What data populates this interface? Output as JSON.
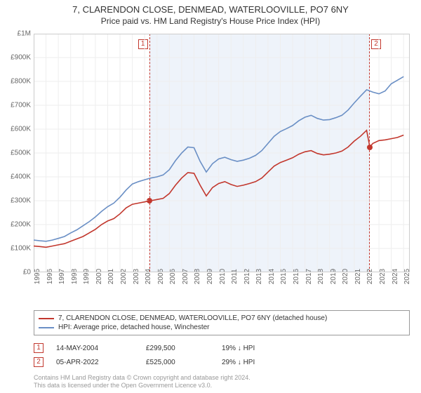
{
  "title": "7, CLARENDON CLOSE, DENMEAD, WATERLOOVILLE, PO7 6NY",
  "subtitle": "Price paid vs. HM Land Registry's House Price Index (HPI)",
  "chart": {
    "type": "line",
    "background_color": "#ffffff",
    "shade_color": "#eef3fa",
    "grid_color": "#eeeeee",
    "axis_color": "#cccccc",
    "ylim": [
      0,
      1000000
    ],
    "ytick_step": 100000,
    "ytick_labels": [
      "£0",
      "£100K",
      "£200K",
      "£300K",
      "£400K",
      "£500K",
      "£600K",
      "£700K",
      "£800K",
      "£900K",
      "£1M"
    ],
    "xlim": [
      1995,
      2025.5
    ],
    "xtick_step": 1,
    "xtick_labels": [
      "1995",
      "1996",
      "1997",
      "1998",
      "1999",
      "2000",
      "2001",
      "2002",
      "2003",
      "2004",
      "2005",
      "2006",
      "2007",
      "2008",
      "2009",
      "2010",
      "2011",
      "2012",
      "2013",
      "2014",
      "2015",
      "2016",
      "2017",
      "2018",
      "2019",
      "2020",
      "2021",
      "2022",
      "2023",
      "2024",
      "2025"
    ],
    "label_fontsize": 10,
    "label_color": "#666666",
    "line_width": 1.6,
    "series": {
      "property": {
        "label": "7, CLARENDON CLOSE, DENMEAD, WATERLOOVILLE, PO7 6NY (detached house)",
        "color": "#c2372d",
        "points": [
          [
            1995,
            110000
          ],
          [
            1995.5,
            108000
          ],
          [
            1996,
            105000
          ],
          [
            1996.5,
            110000
          ],
          [
            1997,
            115000
          ],
          [
            1997.5,
            120000
          ],
          [
            1998,
            130000
          ],
          [
            1998.5,
            140000
          ],
          [
            1999,
            150000
          ],
          [
            1999.5,
            165000
          ],
          [
            2000,
            180000
          ],
          [
            2000.5,
            200000
          ],
          [
            2001,
            215000
          ],
          [
            2001.5,
            225000
          ],
          [
            2002,
            245000
          ],
          [
            2002.5,
            270000
          ],
          [
            2003,
            285000
          ],
          [
            2003.5,
            290000
          ],
          [
            2004,
            295000
          ],
          [
            2004.37,
            299500
          ],
          [
            2004.5,
            300000
          ],
          [
            2005,
            305000
          ],
          [
            2005.5,
            310000
          ],
          [
            2006,
            330000
          ],
          [
            2006.5,
            365000
          ],
          [
            2007,
            395000
          ],
          [
            2007.5,
            418000
          ],
          [
            2008,
            415000
          ],
          [
            2008.5,
            365000
          ],
          [
            2009,
            320000
          ],
          [
            2009.5,
            355000
          ],
          [
            2010,
            372000
          ],
          [
            2010.5,
            380000
          ],
          [
            2011,
            368000
          ],
          [
            2011.5,
            360000
          ],
          [
            2012,
            365000
          ],
          [
            2012.5,
            372000
          ],
          [
            2013,
            380000
          ],
          [
            2013.5,
            395000
          ],
          [
            2014,
            420000
          ],
          [
            2014.5,
            445000
          ],
          [
            2015,
            460000
          ],
          [
            2015.5,
            470000
          ],
          [
            2016,
            480000
          ],
          [
            2016.5,
            495000
          ],
          [
            2017,
            505000
          ],
          [
            2017.5,
            510000
          ],
          [
            2018,
            498000
          ],
          [
            2018.5,
            492000
          ],
          [
            2019,
            495000
          ],
          [
            2019.5,
            500000
          ],
          [
            2020,
            508000
          ],
          [
            2020.5,
            525000
          ],
          [
            2021,
            550000
          ],
          [
            2021.5,
            570000
          ],
          [
            2022,
            595000
          ],
          [
            2022.26,
            525000
          ],
          [
            2022.5,
            540000
          ],
          [
            2023,
            552000
          ],
          [
            2023.5,
            555000
          ],
          [
            2024,
            560000
          ],
          [
            2024.5,
            565000
          ],
          [
            2025,
            575000
          ]
        ]
      },
      "hpi": {
        "label": "HPI: Average price, detached house, Winchester",
        "color": "#6a8fc5",
        "points": [
          [
            1995,
            135000
          ],
          [
            1995.5,
            132000
          ],
          [
            1996,
            130000
          ],
          [
            1996.5,
            135000
          ],
          [
            1997,
            142000
          ],
          [
            1997.5,
            150000
          ],
          [
            1998,
            165000
          ],
          [
            1998.5,
            178000
          ],
          [
            1999,
            195000
          ],
          [
            1999.5,
            212000
          ],
          [
            2000,
            232000
          ],
          [
            2000.5,
            255000
          ],
          [
            2001,
            275000
          ],
          [
            2001.5,
            290000
          ],
          [
            2002,
            315000
          ],
          [
            2002.5,
            345000
          ],
          [
            2003,
            370000
          ],
          [
            2003.5,
            380000
          ],
          [
            2004,
            388000
          ],
          [
            2004.5,
            395000
          ],
          [
            2005,
            400000
          ],
          [
            2005.5,
            408000
          ],
          [
            2006,
            430000
          ],
          [
            2006.5,
            468000
          ],
          [
            2007,
            500000
          ],
          [
            2007.5,
            525000
          ],
          [
            2008,
            522000
          ],
          [
            2008.5,
            465000
          ],
          [
            2009,
            420000
          ],
          [
            2009.5,
            455000
          ],
          [
            2010,
            475000
          ],
          [
            2010.5,
            482000
          ],
          [
            2011,
            472000
          ],
          [
            2011.5,
            465000
          ],
          [
            2012,
            470000
          ],
          [
            2012.5,
            478000
          ],
          [
            2013,
            490000
          ],
          [
            2013.5,
            510000
          ],
          [
            2014,
            540000
          ],
          [
            2014.5,
            570000
          ],
          [
            2015,
            590000
          ],
          [
            2015.5,
            602000
          ],
          [
            2016,
            615000
          ],
          [
            2016.5,
            635000
          ],
          [
            2017,
            650000
          ],
          [
            2017.5,
            658000
          ],
          [
            2018,
            645000
          ],
          [
            2018.5,
            638000
          ],
          [
            2019,
            640000
          ],
          [
            2019.5,
            648000
          ],
          [
            2020,
            658000
          ],
          [
            2020.5,
            680000
          ],
          [
            2021,
            710000
          ],
          [
            2021.5,
            738000
          ],
          [
            2022,
            765000
          ],
          [
            2022.5,
            755000
          ],
          [
            2023,
            748000
          ],
          [
            2023.5,
            760000
          ],
          [
            2024,
            790000
          ],
          [
            2024.5,
            805000
          ],
          [
            2025,
            820000
          ]
        ]
      }
    },
    "shade_range": [
      2004.37,
      2022.26
    ],
    "markers": [
      {
        "n": "1",
        "x": 2004.37,
        "y": 299500
      },
      {
        "n": "2",
        "x": 2022.26,
        "y": 525000
      }
    ]
  },
  "legend": {
    "border_color": "#999999",
    "rows": [
      {
        "color": "#c2372d",
        "label_ref": "property"
      },
      {
        "color": "#6a8fc5",
        "label_ref": "hpi"
      }
    ]
  },
  "transactions": [
    {
      "n": "1",
      "date": "14-MAY-2004",
      "price": "£299,500",
      "diff": "19% ↓ HPI"
    },
    {
      "n": "2",
      "date": "05-APR-2022",
      "price": "£525,000",
      "diff": "29% ↓ HPI"
    }
  ],
  "footer": {
    "line1": "Contains HM Land Registry data © Crown copyright and database right 2024.",
    "line2": "This data is licensed under the Open Government Licence v3.0."
  }
}
